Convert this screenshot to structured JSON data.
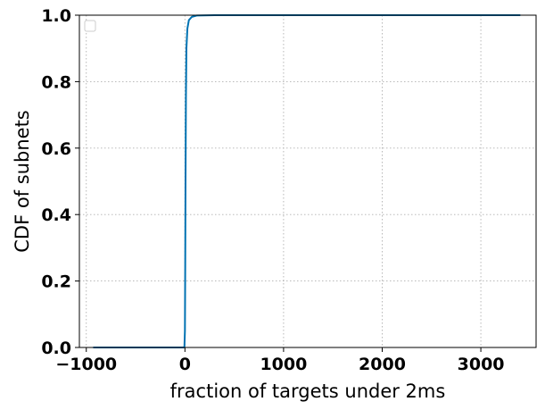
{
  "chart_data": {
    "type": "line",
    "title": "",
    "xlabel": "fraction of targets under 2ms",
    "ylabel": "CDF of subnets",
    "xlim": [
      -1070,
      3560
    ],
    "ylim": [
      0.0,
      1.0
    ],
    "xticks": [
      -1000,
      0,
      1000,
      2000,
      3000
    ],
    "xtick_labels": [
      "−1000",
      "0",
      "1000",
      "2000",
      "3000"
    ],
    "yticks": [
      0.0,
      0.2,
      0.4,
      0.6,
      0.8,
      1.0
    ],
    "ytick_labels": [
      "0.0",
      "0.2",
      "0.4",
      "0.6",
      "0.8",
      "1.0"
    ],
    "grid": true,
    "legend": {
      "location": "upper-left",
      "entries": []
    },
    "series": [
      {
        "color": "#0072b2",
        "x": [
          -930,
          -10,
          -5,
          0,
          3,
          6,
          10,
          15,
          25,
          40,
          70,
          120,
          300,
          1000,
          2000,
          3400
        ],
        "y": [
          0.0,
          0.0,
          0.003,
          0.05,
          0.25,
          0.5,
          0.75,
          0.9,
          0.96,
          0.985,
          0.995,
          0.999,
          1.0,
          1.0,
          1.0,
          1.0
        ]
      }
    ]
  }
}
